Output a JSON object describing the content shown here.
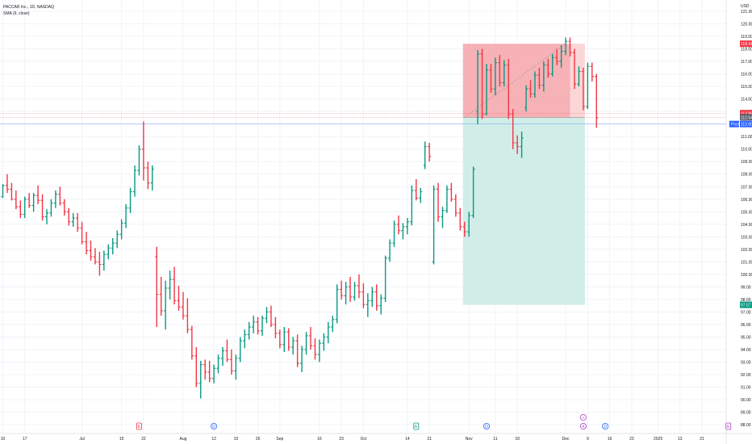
{
  "legend": {
    "symbol_line": "PACCAR Inc., 1D, NASDAQ",
    "indicator_line": "SMA (9, close)"
  },
  "currency": "USD",
  "chart_data": {
    "type": "ohlc",
    "y_axis": {
      "ticks": [
        88.0,
        89.0,
        90.0,
        91.0,
        92.0,
        93.0,
        94.0,
        95.0,
        96.0,
        97.0,
        98.0,
        99.0,
        100.0,
        101.0,
        102.0,
        103.0,
        104.0,
        105.0,
        106.0,
        107.0,
        108.0,
        109.0,
        110.0,
        111.0,
        112.0,
        113.0,
        114.0,
        115.0,
        116.0,
        117.0,
        118.0,
        119.0,
        120.0,
        121.0
      ],
      "ylim": [
        87.3,
        121.9
      ]
    },
    "x_axis": {
      "ticks": [
        {
          "i": 0,
          "label": "10"
        },
        {
          "i": 5,
          "label": "17"
        },
        {
          "i": 18,
          "label": "Jul"
        },
        {
          "i": 27,
          "label": "15"
        },
        {
          "i": 32,
          "label": "22"
        },
        {
          "i": 41,
          "label": "Aug"
        },
        {
          "i": 48,
          "label": "12"
        },
        {
          "i": 53,
          "label": "19"
        },
        {
          "i": 58,
          "label": "26"
        },
        {
          "i": 63,
          "label": "Sep"
        },
        {
          "i": 72,
          "label": "16"
        },
        {
          "i": 77,
          "label": "23"
        },
        {
          "i": 82,
          "label": "Oct"
        },
        {
          "i": 92,
          "label": "14"
        },
        {
          "i": 97,
          "label": "21"
        },
        {
          "i": 106,
          "label": "Nov"
        },
        {
          "i": 112,
          "label": "11"
        },
        {
          "i": 117,
          "label": "18"
        },
        {
          "i": 128,
          "label": "Dec"
        },
        {
          "i": 133,
          "label": "9"
        },
        {
          "i": 138,
          "label": "16"
        },
        {
          "i": 143,
          "label": "23"
        },
        {
          "i": 149,
          "label": "2025"
        },
        {
          "i": 154,
          "label": "13"
        },
        {
          "i": 159,
          "label": "21"
        }
      ]
    },
    "bars": [
      [
        106.2,
        107.2,
        106.1,
        107.1
      ],
      [
        107.1,
        108.0,
        106.5,
        106.8
      ],
      [
        106.8,
        107.3,
        105.9,
        106.0
      ],
      [
        106.0,
        106.7,
        105.2,
        105.4
      ],
      [
        105.4,
        105.9,
        104.5,
        104.8
      ],
      [
        104.8,
        106.2,
        104.5,
        106.0
      ],
      [
        106.0,
        106.5,
        105.3,
        105.5
      ],
      [
        105.5,
        106.5,
        105.0,
        106.3
      ],
      [
        106.3,
        107.1,
        105.6,
        105.9
      ],
      [
        105.9,
        106.4,
        104.3,
        104.6
      ],
      [
        104.6,
        105.2,
        104.0,
        104.9
      ],
      [
        104.9,
        106.0,
        104.6,
        105.7
      ],
      [
        105.7,
        106.7,
        105.3,
        106.4
      ],
      [
        106.4,
        107.0,
        105.5,
        105.7
      ],
      [
        105.7,
        106.0,
        104.7,
        105.0
      ],
      [
        105.0,
        105.3,
        103.9,
        104.2
      ],
      [
        104.2,
        104.9,
        103.8,
        104.5
      ],
      [
        104.5,
        104.9,
        103.4,
        103.7
      ],
      [
        103.7,
        104.2,
        102.4,
        102.6
      ],
      [
        102.6,
        103.4,
        101.6,
        101.9
      ],
      [
        101.9,
        102.7,
        101.1,
        101.4
      ],
      [
        101.4,
        102.1,
        100.8,
        101.0
      ],
      [
        101.0,
        101.8,
        99.9,
        100.8
      ],
      [
        100.8,
        101.9,
        100.3,
        101.6
      ],
      [
        101.6,
        102.4,
        101.2,
        102.1
      ],
      [
        102.1,
        102.9,
        101.6,
        102.5
      ],
      [
        102.5,
        103.5,
        102.1,
        103.2
      ],
      [
        103.2,
        104.4,
        102.8,
        104.1
      ],
      [
        104.1,
        105.6,
        103.7,
        105.3
      ],
      [
        105.3,
        106.9,
        104.9,
        106.6
      ],
      [
        106.6,
        108.7,
        106.2,
        108.3
      ],
      [
        108.3,
        110.3,
        107.9,
        110.0
      ],
      [
        110.0,
        112.2,
        107.5,
        108.5
      ],
      [
        108.5,
        109.0,
        106.8,
        107.3
      ],
      [
        107.3,
        108.7,
        106.7,
        108.4
      ],
      [
        101.4,
        102.2,
        95.8,
        98.4
      ],
      [
        98.4,
        99.8,
        96.7,
        97.1
      ],
      [
        97.1,
        99.5,
        95.6,
        98.9
      ],
      [
        98.9,
        100.3,
        98.0,
        99.6
      ],
      [
        99.6,
        100.6,
        97.6,
        97.9
      ],
      [
        97.9,
        99.1,
        97.1,
        97.4
      ],
      [
        97.4,
        98.6,
        96.4,
        96.7
      ],
      [
        96.7,
        98.1,
        95.3,
        95.6
      ],
      [
        95.6,
        95.9,
        93.2,
        93.5
      ],
      [
        93.5,
        94.2,
        91.0,
        91.3
      ],
      [
        91.3,
        93.1,
        90.1,
        92.8
      ],
      [
        92.8,
        93.2,
        91.6,
        92.2
      ],
      [
        92.2,
        93.1,
        91.4,
        91.7
      ],
      [
        91.7,
        92.8,
        91.3,
        92.5
      ],
      [
        92.5,
        93.6,
        92.1,
        93.3
      ],
      [
        93.3,
        94.2,
        92.7,
        93.9
      ],
      [
        93.9,
        94.8,
        93.0,
        93.2
      ],
      [
        93.2,
        94.0,
        92.0,
        92.3
      ],
      [
        92.3,
        93.6,
        91.6,
        93.3
      ],
      [
        93.3,
        95.0,
        93.0,
        94.7
      ],
      [
        94.7,
        95.6,
        94.1,
        95.2
      ],
      [
        95.2,
        96.2,
        94.8,
        95.8
      ],
      [
        95.8,
        96.7,
        95.3,
        96.2
      ],
      [
        96.2,
        96.6,
        95.2,
        95.5
      ],
      [
        95.5,
        96.7,
        95.1,
        96.5
      ],
      [
        96.5,
        97.4,
        96.1,
        97.0
      ],
      [
        97.0,
        97.5,
        95.8,
        96.0
      ],
      [
        96.0,
        96.6,
        94.9,
        95.3
      ],
      [
        95.3,
        95.6,
        94.1,
        94.4
      ],
      [
        94.4,
        95.8,
        93.8,
        95.4
      ],
      [
        95.4,
        95.7,
        93.9,
        94.2
      ],
      [
        94.2,
        95.0,
        93.6,
        94.7
      ],
      [
        94.7,
        95.2,
        92.6,
        92.9
      ],
      [
        92.9,
        94.3,
        92.2,
        94.0
      ],
      [
        94.0,
        95.4,
        93.6,
        95.1
      ],
      [
        95.1,
        95.8,
        94.0,
        94.3
      ],
      [
        94.3,
        94.9,
        93.2,
        93.6
      ],
      [
        93.6,
        94.8,
        93.0,
        94.5
      ],
      [
        94.5,
        95.3,
        93.9,
        95.0
      ],
      [
        95.0,
        96.2,
        94.5,
        95.8
      ],
      [
        95.8,
        96.7,
        95.4,
        96.4
      ],
      [
        96.4,
        99.2,
        96.1,
        98.8
      ],
      [
        98.8,
        99.5,
        98.0,
        98.3
      ],
      [
        98.3,
        99.4,
        97.6,
        99.0
      ],
      [
        99.0,
        99.8,
        97.8,
        98.2
      ],
      [
        98.2,
        99.4,
        97.9,
        99.1
      ],
      [
        99.1,
        100.0,
        98.1,
        98.6
      ],
      [
        98.6,
        99.3,
        97.3,
        97.6
      ],
      [
        97.6,
        98.5,
        96.6,
        97.9
      ],
      [
        97.9,
        99.0,
        97.4,
        98.6
      ],
      [
        98.6,
        99.2,
        97.1,
        97.5
      ],
      [
        97.5,
        98.4,
        96.8,
        98.1
      ],
      [
        98.1,
        101.5,
        97.8,
        101.3
      ],
      [
        101.3,
        102.8,
        101.0,
        102.5
      ],
      [
        102.5,
        104.3,
        102.2,
        104.0
      ],
      [
        104.0,
        104.7,
        103.2,
        103.5
      ],
      [
        103.5,
        104.1,
        102.8,
        103.8
      ],
      [
        103.8,
        104.5,
        103.2,
        104.2
      ],
      [
        104.2,
        107.1,
        103.9,
        106.7
      ],
      [
        106.7,
        107.6,
        105.9,
        106.1
      ],
      [
        106.1,
        106.9,
        105.7,
        106.6
      ],
      [
        108.7,
        110.6,
        108.4,
        110.2
      ],
      [
        110.2,
        110.5,
        109.0,
        109.4
      ],
      [
        101.0,
        107.1,
        100.8,
        106.8
      ],
      [
        106.8,
        107.3,
        104.2,
        104.6
      ],
      [
        104.6,
        105.4,
        103.7,
        105.1
      ],
      [
        105.1,
        107.1,
        104.9,
        106.8
      ],
      [
        106.8,
        107.3,
        105.8,
        106.0
      ],
      [
        106.0,
        106.4,
        104.6,
        104.9
      ],
      [
        104.9,
        105.3,
        103.5,
        103.8
      ],
      [
        103.8,
        104.2,
        103.0,
        103.4
      ],
      [
        103.4,
        105.0,
        103.0,
        104.7
      ],
      [
        104.7,
        108.6,
        104.5,
        108.4
      ],
      [
        113.0,
        117.9,
        112.0,
        117.6
      ],
      [
        117.6,
        118.0,
        112.4,
        112.8
      ],
      [
        112.8,
        116.8,
        112.7,
        116.3
      ],
      [
        116.3,
        116.8,
        114.5,
        114.8
      ],
      [
        114.8,
        117.3,
        114.3,
        116.9
      ],
      [
        116.9,
        117.5,
        115.0,
        115.3
      ],
      [
        115.3,
        117.1,
        115.0,
        116.7
      ],
      [
        116.7,
        117.2,
        112.4,
        112.8
      ],
      [
        112.8,
        113.2,
        110.0,
        110.5
      ],
      [
        110.5,
        111.1,
        109.6,
        110.2
      ],
      [
        110.2,
        111.4,
        109.3,
        110.9
      ],
      [
        113.3,
        115.1,
        113.0,
        114.8
      ],
      [
        114.8,
        115.5,
        114.1,
        114.4
      ],
      [
        114.4,
        116.2,
        114.1,
        115.9
      ],
      [
        115.9,
        116.5,
        114.8,
        115.1
      ],
      [
        115.1,
        117.0,
        114.6,
        116.7
      ],
      [
        116.7,
        117.2,
        115.7,
        116.0
      ],
      [
        116.0,
        117.6,
        115.8,
        117.3
      ],
      [
        117.3,
        118.0,
        116.7,
        117.0
      ],
      [
        117.0,
        118.3,
        116.5,
        117.8
      ],
      [
        117.8,
        118.9,
        117.5,
        118.6
      ],
      [
        118.6,
        118.9,
        117.4,
        117.7
      ],
      [
        117.7,
        118.0,
        114.8,
        115.2
      ],
      [
        115.2,
        116.6,
        115.0,
        116.2
      ],
      [
        116.2,
        116.5,
        113.1,
        113.4
      ],
      [
        113.4,
        116.9,
        113.2,
        116.6
      ],
      [
        116.6,
        116.9,
        115.4,
        115.8
      ],
      [
        115.8,
        116.0,
        111.7,
        112.5
      ]
    ],
    "sma": {
      "label": "SMA (9, close)",
      "period": 9
    },
    "position": {
      "type": "short",
      "start_index": 105,
      "end_index": 132,
      "entry": 112.54,
      "stop": 118.41,
      "target": 97.57,
      "zone_start_index": 129,
      "loss_zone_color": "#f5a5a9",
      "loss_zone_light_color": "#fbd1d3",
      "profit_zone_color": "#cfece7",
      "trail": [
        [
          105,
          112.54
        ],
        [
          128,
          118.41
        ]
      ]
    },
    "price_labels": [
      {
        "value": 118.41,
        "label": "118.41",
        "color": "#f23645"
      },
      {
        "value": 112.86,
        "label": "112.86",
        "color": "#f23645"
      },
      {
        "value": 112.54,
        "label": "112.54",
        "color": "#5d606b"
      },
      {
        "value": 112.0,
        "label": "Post",
        "text2": "112.00",
        "color": "#2962ff"
      },
      {
        "value": 97.57,
        "label": "97.57",
        "color": "#089981"
      }
    ],
    "reference_lines": [
      112.86,
      112.54,
      112.0
    ],
    "events": [
      {
        "i": 31,
        "symbol": "E",
        "color": "#f23645"
      },
      {
        "i": 48,
        "symbol": "D",
        "color": "#2962ff"
      },
      {
        "i": 94,
        "symbol": "E",
        "color": "#089981"
      },
      {
        "i": 110,
        "symbol": "D",
        "color": "#2962ff"
      },
      {
        "i": 132,
        "symbol": "+",
        "color": "#a93cc4",
        "stacked": true
      },
      {
        "i": 132,
        "symbol": "4",
        "color": "#a93cc4"
      },
      {
        "i": 137,
        "symbol": "D",
        "color": "#2962ff"
      },
      {
        "i": 165,
        "symbol": "E",
        "color": "#a93cc4"
      }
    ],
    "colors": {
      "up": "#089981",
      "down": "#f23645",
      "grid": "#f0f3fa"
    }
  }
}
